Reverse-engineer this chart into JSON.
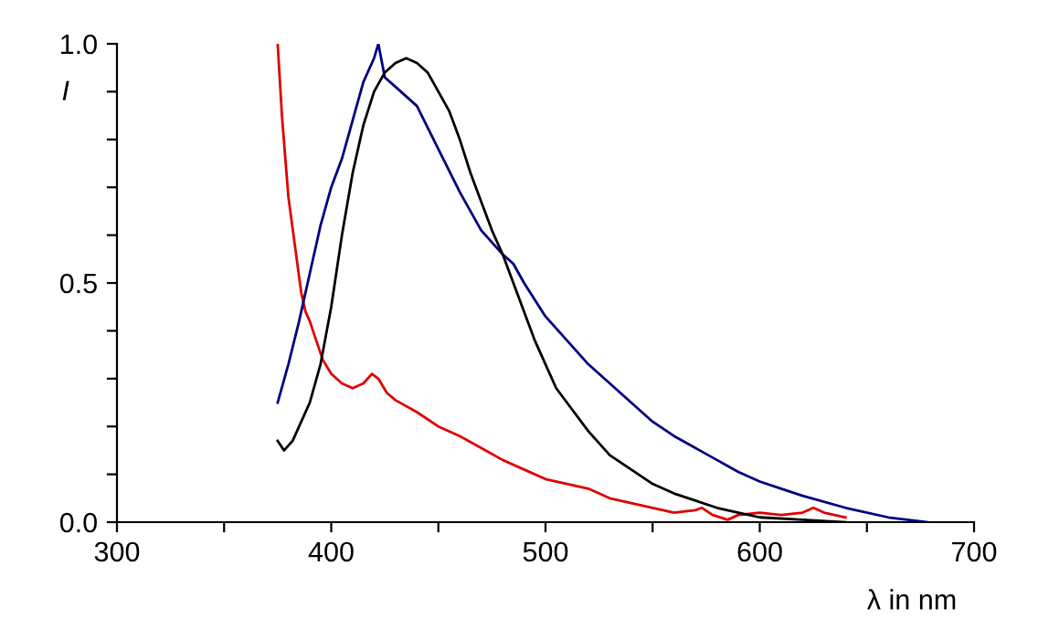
{
  "chart_data": {
    "type": "line",
    "xlabel": "λ in nm",
    "ylabel": "I",
    "xlim": [
      300,
      700
    ],
    "ylim": [
      0,
      1.0
    ],
    "xticks": [
      300,
      {
        "value": 350,
        "label": null
      },
      400,
      {
        "value": 450,
        "label": null
      },
      500,
      {
        "value": 550,
        "label": null
      },
      600,
      {
        "value": 650,
        "label": null
      },
      700
    ],
    "yticks": [
      {
        "value": 0,
        "label": "0.0"
      },
      {
        "value": 0.1,
        "label": null
      },
      {
        "value": 0.2,
        "label": null
      },
      {
        "value": 0.3,
        "label": null
      },
      {
        "value": 0.4,
        "label": null
      },
      {
        "value": 0.5,
        "label": "0.5"
      },
      {
        "value": 0.6,
        "label": null
      },
      {
        "value": 0.7,
        "label": null
      },
      {
        "value": 0.8,
        "label": null
      },
      {
        "value": 0.9,
        "label": null
      },
      {
        "value": 1.0,
        "label": "1.0"
      }
    ],
    "grid": false,
    "legend": false,
    "series": [
      {
        "color": "#e00000",
        "x": [
          375,
          377,
          380,
          383,
          386,
          388,
          390,
          393,
          396,
          400,
          405,
          410,
          415,
          419,
          422,
          426,
          430,
          440,
          450,
          460,
          470,
          480,
          490,
          500,
          510,
          520,
          530,
          540,
          550,
          560,
          570,
          573,
          578,
          585,
          590,
          600,
          610,
          620,
          625,
          630,
          640
        ],
        "values": [
          1.0,
          0.85,
          0.68,
          0.58,
          0.48,
          0.44,
          0.42,
          0.38,
          0.34,
          0.31,
          0.29,
          0.28,
          0.29,
          0.31,
          0.3,
          0.27,
          0.255,
          0.23,
          0.2,
          0.18,
          0.155,
          0.13,
          0.11,
          0.09,
          0.08,
          0.07,
          0.05,
          0.04,
          0.03,
          0.02,
          0.025,
          0.03,
          0.015,
          0.005,
          0.015,
          0.02,
          0.015,
          0.02,
          0.03,
          0.02,
          0.01
        ]
      },
      {
        "color": "#000080",
        "x": [
          375,
          380,
          385,
          390,
          395,
          400,
          405,
          410,
          415,
          420,
          422,
          425,
          430,
          440,
          450,
          460,
          470,
          480,
          485,
          490,
          500,
          510,
          520,
          530,
          540,
          550,
          560,
          570,
          580,
          590,
          600,
          610,
          620,
          640,
          660,
          678
        ],
        "values": [
          0.25,
          0.33,
          0.42,
          0.52,
          0.62,
          0.7,
          0.76,
          0.84,
          0.92,
          0.97,
          1.0,
          0.93,
          0.91,
          0.87,
          0.78,
          0.69,
          0.61,
          0.56,
          0.54,
          0.5,
          0.43,
          0.38,
          0.33,
          0.29,
          0.25,
          0.21,
          0.18,
          0.155,
          0.13,
          0.105,
          0.085,
          0.07,
          0.055,
          0.03,
          0.01,
          0.0
        ]
      },
      {
        "color": "#000000",
        "x": [
          375,
          378,
          382,
          390,
          395,
          400,
          405,
          410,
          415,
          420,
          425,
          430,
          435,
          440,
          445,
          450,
          455,
          460,
          465,
          470,
          475,
          480,
          485,
          490,
          495,
          500,
          505,
          510,
          520,
          530,
          540,
          550,
          560,
          570,
          580,
          590,
          600,
          620,
          640
        ],
        "values": [
          0.17,
          0.15,
          0.17,
          0.25,
          0.33,
          0.45,
          0.6,
          0.73,
          0.83,
          0.9,
          0.94,
          0.96,
          0.97,
          0.96,
          0.94,
          0.9,
          0.86,
          0.8,
          0.73,
          0.67,
          0.61,
          0.56,
          0.5,
          0.44,
          0.38,
          0.33,
          0.28,
          0.25,
          0.19,
          0.14,
          0.11,
          0.08,
          0.06,
          0.045,
          0.03,
          0.02,
          0.01,
          0.005,
          0.0
        ]
      }
    ]
  }
}
